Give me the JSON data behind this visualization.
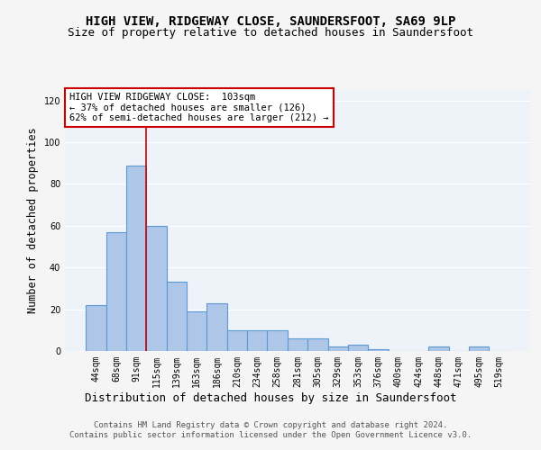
{
  "title": "HIGH VIEW, RIDGEWAY CLOSE, SAUNDERSFOOT, SA69 9LP",
  "subtitle": "Size of property relative to detached houses in Saundersfoot",
  "xlabel": "Distribution of detached houses by size in Saundersfoot",
  "ylabel": "Number of detached properties",
  "footer_line1": "Contains HM Land Registry data © Crown copyright and database right 2024.",
  "footer_line2": "Contains public sector information licensed under the Open Government Licence v3.0.",
  "categories": [
    "44sqm",
    "68sqm",
    "91sqm",
    "115sqm",
    "139sqm",
    "163sqm",
    "186sqm",
    "210sqm",
    "234sqm",
    "258sqm",
    "281sqm",
    "305sqm",
    "329sqm",
    "353sqm",
    "376sqm",
    "400sqm",
    "424sqm",
    "448sqm",
    "471sqm",
    "495sqm",
    "519sqm"
  ],
  "values": [
    22,
    57,
    89,
    60,
    33,
    19,
    23,
    10,
    10,
    10,
    6,
    6,
    2,
    3,
    1,
    0,
    0,
    2,
    0,
    2,
    0
  ],
  "bar_color": "#aec6e8",
  "bar_edge_color": "#5b9bd5",
  "bar_edge_width": 0.8,
  "red_line_x": 2.5,
  "annotation_text": "HIGH VIEW RIDGEWAY CLOSE:  103sqm\n← 37% of detached houses are smaller (126)\n62% of semi-detached houses are larger (212) →",
  "annotation_box_color": "#ffffff",
  "annotation_box_edge": "#cc0000",
  "ylim": [
    0,
    125
  ],
  "yticks": [
    0,
    20,
    40,
    60,
    80,
    100,
    120
  ],
  "background_color": "#eef2f9",
  "fig_background_color": "#f5f5f5",
  "grid_color": "#ffffff",
  "title_fontsize": 10,
  "subtitle_fontsize": 9,
  "xlabel_fontsize": 9,
  "ylabel_fontsize": 8.5,
  "tick_fontsize": 7,
  "footer_fontsize": 6.5,
  "annot_fontsize": 7.5
}
